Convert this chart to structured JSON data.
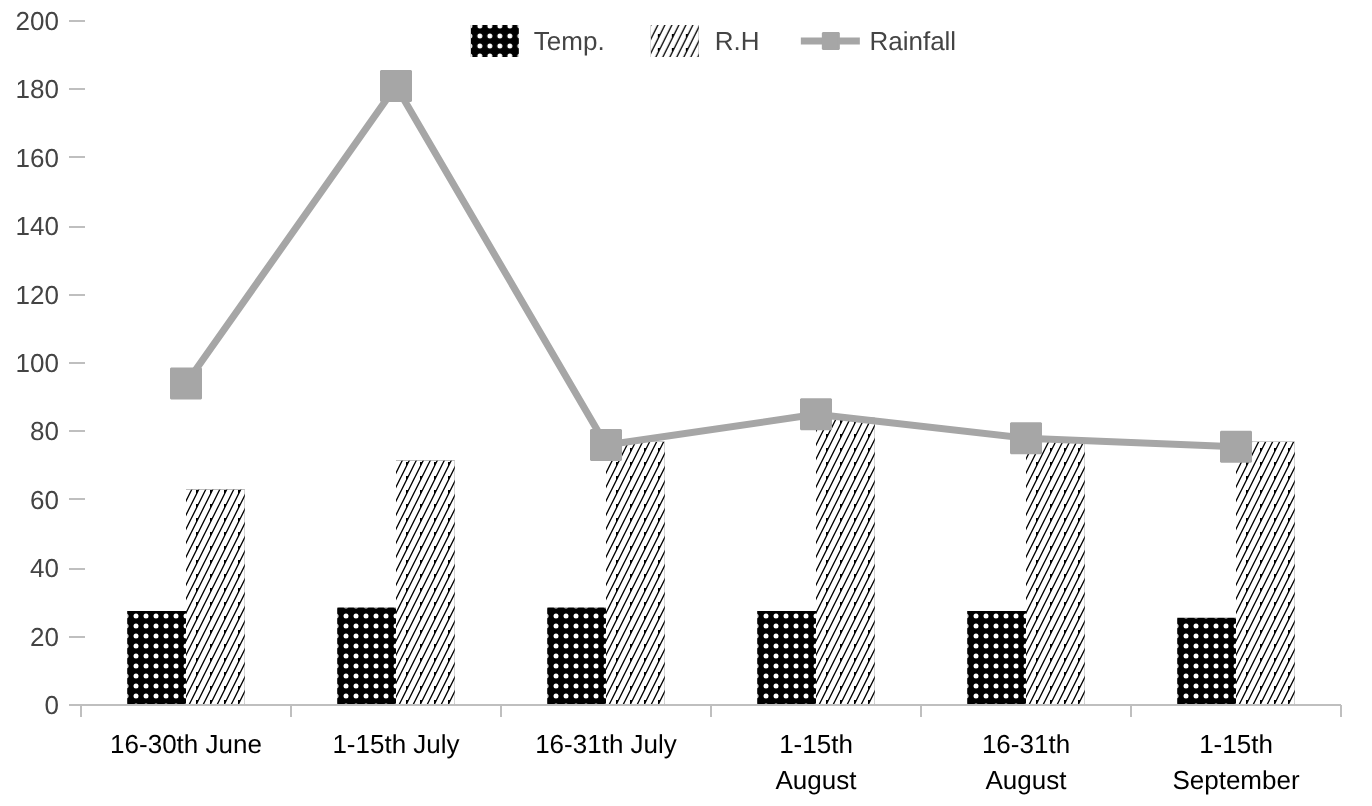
{
  "chart_data": {
    "type": "bar",
    "categories": [
      "16-30th June",
      "1-15th July",
      "16-31th July",
      "1-15th August",
      "16-31th August",
      "1-15th September"
    ],
    "series": [
      {
        "name": "Temp.",
        "color": "#000000",
        "values": [
          27.5,
          28.5,
          28.5,
          27.5,
          27.5,
          25.5
        ]
      },
      {
        "name": "R.H",
        "color": "#000000",
        "values": [
          63,
          71.5,
          77,
          84,
          77,
          77
        ]
      },
      {
        "name": "Rainfall",
        "type": "line",
        "color": "#a6a6a6",
        "marker": "square",
        "values": [
          94,
          181,
          76,
          85,
          78,
          75.5
        ]
      }
    ],
    "ylim": [
      0,
      200
    ],
    "yticks": [
      0,
      20,
      40,
      60,
      80,
      100,
      120,
      140,
      160,
      180,
      200
    ],
    "grid": false,
    "legend": "top"
  }
}
